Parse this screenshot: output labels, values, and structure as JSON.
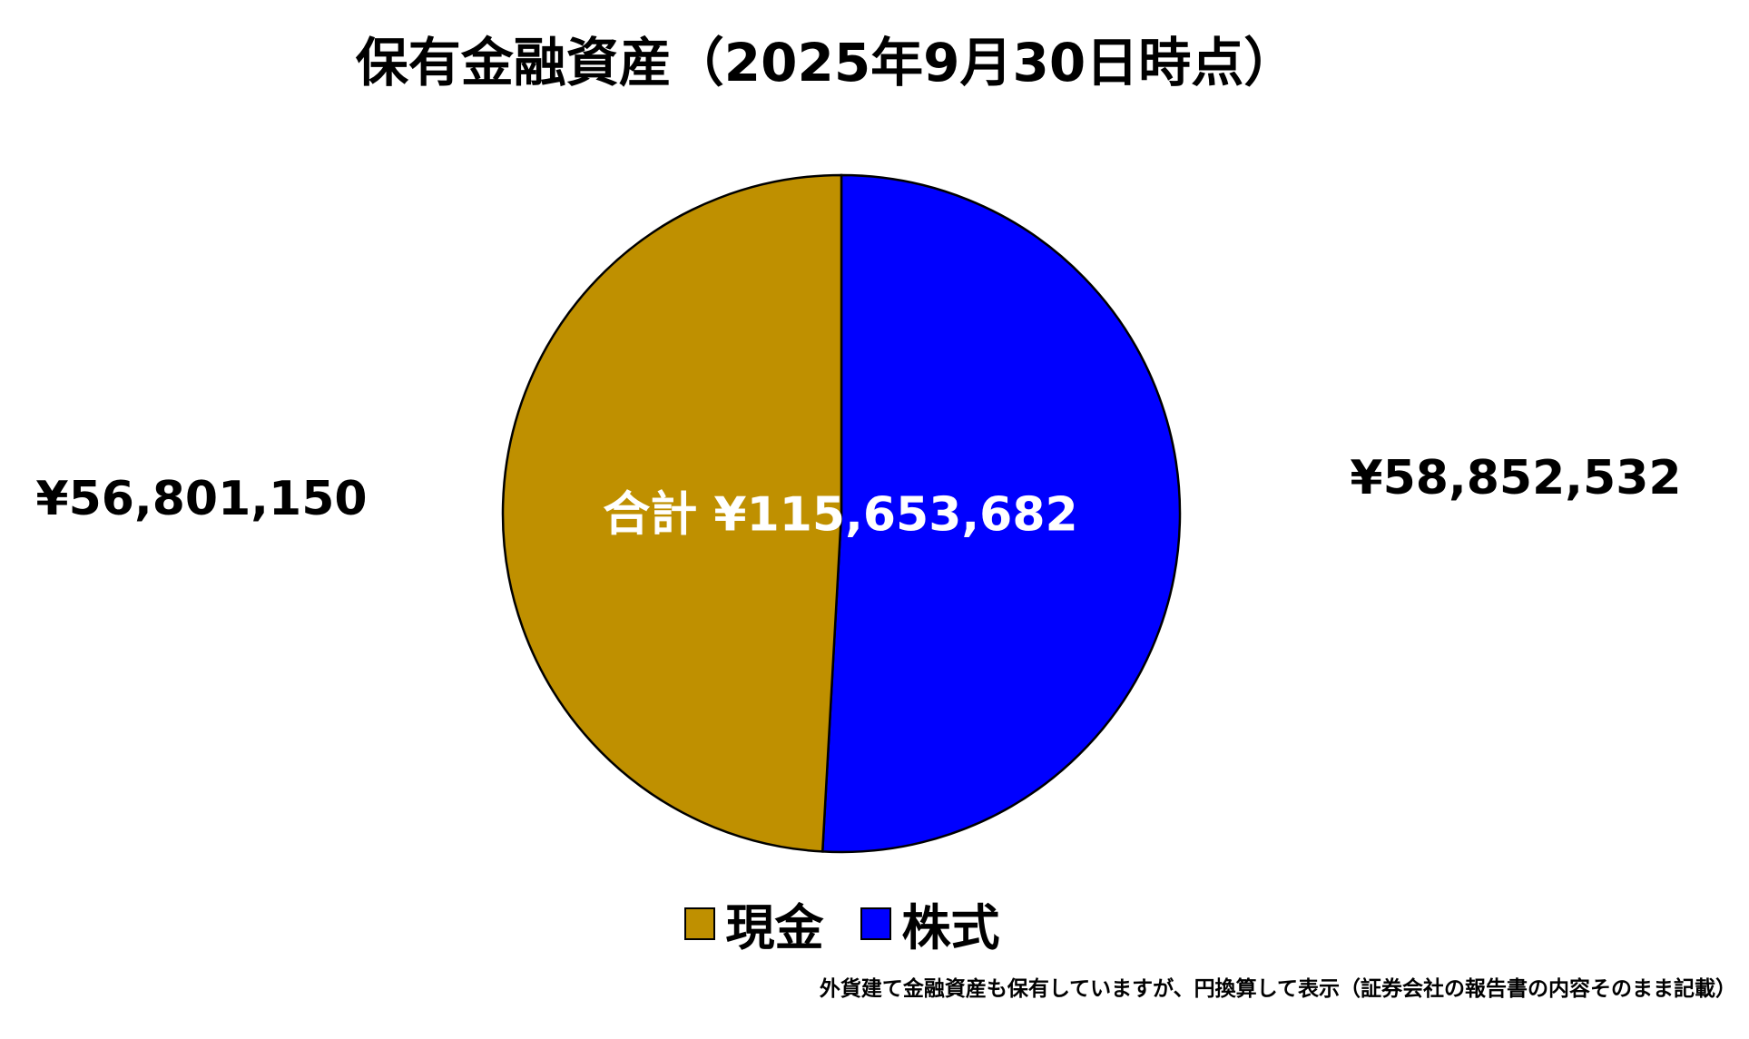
{
  "chart_data": {
    "type": "pie",
    "title": "保有金融資産（2025年9月30日時点）",
    "slices": [
      {
        "label": "株式",
        "value": 58852532,
        "display": "¥58,852,532",
        "color": "#0000FF"
      },
      {
        "label": "現金",
        "value": 56801150,
        "display": "¥56,801,150",
        "color": "#BF9000"
      }
    ],
    "total_label": "合計 ¥115,653,682",
    "legend_placement": "bottom",
    "start_angle": "top, clockwise"
  },
  "legend": [
    {
      "label": "現金",
      "color": "#BF9000"
    },
    {
      "label": "株式",
      "color": "#0000FF"
    }
  ],
  "footnote": "外貨建て金融資産も保有していますが、円換算して表示（証券会社の報告書の内容そのまま記載）"
}
